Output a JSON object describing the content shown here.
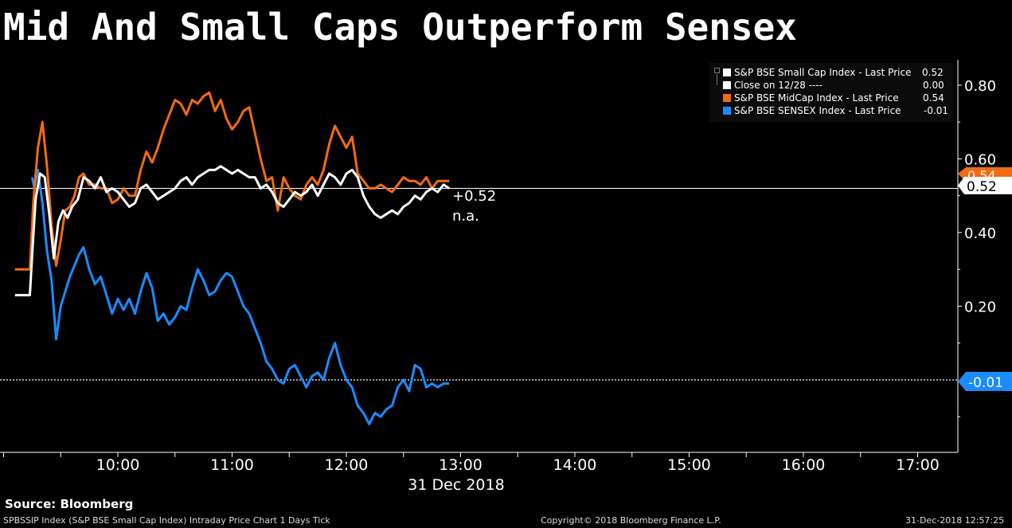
{
  "title": "Mid And Small Caps Outperform Sensex",
  "legend": {
    "items": [
      {
        "label": "S&P BSE Small Cap Index - Last Price",
        "value": "0.52",
        "color": "#ffffff"
      },
      {
        "label": "Close on 12/28 ----",
        "value": "0.00",
        "color": "#ffffff"
      },
      {
        "label": "S&P BSE MidCap Index - Last Price",
        "value": "0.54",
        "color": "#f26b12"
      },
      {
        "label": "S&P BSE SENSEX Index - Last Price",
        "value": "-0.01",
        "color": "#1a8cff"
      }
    ]
  },
  "annotations": {
    "change": "+0.52",
    "na": "n.a."
  },
  "tags": {
    "small": "0.52",
    "mid": "0.54",
    "sensex": "-0.01"
  },
  "x_date": "31 Dec 2018",
  "footer": {
    "source": "Source: Bloomberg",
    "left": "SPBSSIP Index (S&P BSE Small Cap Index) Intraday Price Chart 1 Days  Tick",
    "center": "Copyright© 2018 Bloomberg Finance L.P.",
    "right": "31-Dec-2018 12:57:25"
  },
  "chart_data": {
    "type": "line",
    "title": "Mid And Small Caps Outperform Sensex",
    "xlabel": "31 Dec 2018",
    "ylabel": "",
    "xlim": [
      9.0,
      17.5
    ],
    "ylim": [
      -0.2,
      0.9
    ],
    "x_ticks": [
      10,
      11,
      12,
      13,
      14,
      15,
      16,
      17
    ],
    "x_tick_labels": [
      "10:00",
      "11:00",
      "12:00",
      "13:00",
      "14:00",
      "15:00",
      "16:00",
      "17:00"
    ],
    "y_ticks": [
      0.2,
      0.4,
      0.6,
      0.8
    ],
    "y_tick_labels": [
      "0.20",
      "0.40",
      "0.60",
      "0.80"
    ],
    "reference_lines": [
      {
        "name": "Close on 12/28",
        "value": 0.0
      }
    ],
    "series": [
      {
        "name": "S&P BSE Small Cap Index - Last Price",
        "color": "#ffffff",
        "x": [
          9.1,
          9.23,
          9.25,
          9.28,
          9.32,
          9.36,
          9.4,
          9.44,
          9.48,
          9.52,
          9.56,
          9.6,
          9.65,
          9.7,
          9.75,
          9.8,
          9.85,
          9.9,
          9.95,
          10.0,
          10.05,
          10.1,
          10.15,
          10.2,
          10.25,
          10.3,
          10.35,
          10.4,
          10.45,
          10.5,
          10.55,
          10.6,
          10.65,
          10.7,
          10.75,
          10.8,
          10.85,
          10.9,
          10.95,
          11.0,
          11.05,
          11.1,
          11.15,
          11.2,
          11.25,
          11.3,
          11.35,
          11.4,
          11.45,
          11.5,
          11.55,
          11.6,
          11.65,
          11.7,
          11.75,
          11.8,
          11.85,
          11.9,
          11.95,
          12.0,
          12.05,
          12.1,
          12.15,
          12.2,
          12.25,
          12.3,
          12.35,
          12.4,
          12.45,
          12.5,
          12.55,
          12.6,
          12.65,
          12.7,
          12.75,
          12.8,
          12.85,
          12.9
        ],
        "values": [
          0.23,
          0.23,
          0.34,
          0.49,
          0.56,
          0.55,
          0.45,
          0.33,
          0.43,
          0.46,
          0.44,
          0.47,
          0.49,
          0.55,
          0.54,
          0.52,
          0.55,
          0.51,
          0.52,
          0.51,
          0.49,
          0.47,
          0.48,
          0.52,
          0.53,
          0.51,
          0.49,
          0.5,
          0.51,
          0.52,
          0.54,
          0.55,
          0.53,
          0.55,
          0.56,
          0.57,
          0.57,
          0.58,
          0.57,
          0.56,
          0.57,
          0.56,
          0.55,
          0.55,
          0.52,
          0.53,
          0.51,
          0.48,
          0.47,
          0.49,
          0.51,
          0.5,
          0.51,
          0.53,
          0.5,
          0.53,
          0.56,
          0.55,
          0.53,
          0.56,
          0.57,
          0.55,
          0.5,
          0.47,
          0.45,
          0.44,
          0.45,
          0.46,
          0.45,
          0.47,
          0.48,
          0.5,
          0.49,
          0.51,
          0.52,
          0.51,
          0.53,
          0.52
        ]
      },
      {
        "name": "S&P BSE MidCap Index - Last Price",
        "color": "#f26b12",
        "x": [
          9.1,
          9.23,
          9.26,
          9.3,
          9.34,
          9.38,
          9.42,
          9.46,
          9.5,
          9.54,
          9.58,
          9.62,
          9.66,
          9.7,
          9.75,
          9.8,
          9.85,
          9.9,
          9.95,
          10.0,
          10.05,
          10.1,
          10.15,
          10.2,
          10.25,
          10.3,
          10.35,
          10.4,
          10.45,
          10.5,
          10.55,
          10.6,
          10.65,
          10.7,
          10.75,
          10.8,
          10.85,
          10.9,
          10.95,
          11.0,
          11.05,
          11.1,
          11.15,
          11.2,
          11.25,
          11.3,
          11.35,
          11.4,
          11.45,
          11.5,
          11.55,
          11.6,
          11.65,
          11.7,
          11.75,
          11.8,
          11.85,
          11.9,
          11.95,
          12.0,
          12.05,
          12.1,
          12.15,
          12.2,
          12.25,
          12.3,
          12.35,
          12.4,
          12.45,
          12.5,
          12.55,
          12.6,
          12.65,
          12.7,
          12.75,
          12.8,
          12.85,
          12.9
        ],
        "values": [
          0.3,
          0.3,
          0.48,
          0.63,
          0.7,
          0.58,
          0.42,
          0.31,
          0.38,
          0.46,
          0.47,
          0.5,
          0.55,
          0.56,
          0.53,
          0.53,
          0.52,
          0.52,
          0.48,
          0.49,
          0.52,
          0.5,
          0.5,
          0.57,
          0.62,
          0.59,
          0.63,
          0.68,
          0.72,
          0.76,
          0.75,
          0.72,
          0.76,
          0.75,
          0.77,
          0.78,
          0.73,
          0.76,
          0.71,
          0.68,
          0.7,
          0.73,
          0.74,
          0.67,
          0.6,
          0.54,
          0.55,
          0.46,
          0.55,
          0.52,
          0.5,
          0.49,
          0.53,
          0.55,
          0.53,
          0.57,
          0.64,
          0.69,
          0.66,
          0.63,
          0.66,
          0.56,
          0.54,
          0.52,
          0.52,
          0.53,
          0.52,
          0.51,
          0.53,
          0.55,
          0.54,
          0.54,
          0.53,
          0.55,
          0.52,
          0.54,
          0.54,
          0.54
        ]
      },
      {
        "name": "S&P BSE SENSEX Index - Last Price",
        "color": "#1a8cff",
        "x": [
          9.25,
          9.27,
          9.3,
          9.34,
          9.38,
          9.42,
          9.46,
          9.5,
          9.54,
          9.58,
          9.62,
          9.66,
          9.7,
          9.75,
          9.8,
          9.85,
          9.9,
          9.95,
          10.0,
          10.05,
          10.1,
          10.15,
          10.2,
          10.25,
          10.3,
          10.35,
          10.4,
          10.45,
          10.5,
          10.55,
          10.6,
          10.65,
          10.7,
          10.75,
          10.8,
          10.85,
          10.9,
          10.95,
          11.0,
          11.05,
          11.1,
          11.15,
          11.2,
          11.25,
          11.3,
          11.35,
          11.4,
          11.45,
          11.5,
          11.55,
          11.6,
          11.65,
          11.7,
          11.75,
          11.8,
          11.85,
          11.9,
          11.95,
          12.0,
          12.05,
          12.1,
          12.15,
          12.2,
          12.25,
          12.3,
          12.35,
          12.4,
          12.45,
          12.5,
          12.55,
          12.6,
          12.65,
          12.7,
          12.75,
          12.8,
          12.85,
          12.9
        ],
        "values": [
          0.55,
          0.52,
          0.57,
          0.48,
          0.35,
          0.27,
          0.11,
          0.2,
          0.24,
          0.28,
          0.31,
          0.34,
          0.36,
          0.3,
          0.26,
          0.28,
          0.23,
          0.18,
          0.22,
          0.19,
          0.22,
          0.18,
          0.24,
          0.29,
          0.25,
          0.16,
          0.18,
          0.15,
          0.17,
          0.2,
          0.19,
          0.25,
          0.3,
          0.27,
          0.23,
          0.24,
          0.27,
          0.29,
          0.28,
          0.24,
          0.2,
          0.18,
          0.14,
          0.1,
          0.05,
          0.03,
          0.0,
          -0.01,
          0.03,
          0.04,
          0.01,
          -0.02,
          0.01,
          0.02,
          0.0,
          0.06,
          0.1,
          0.04,
          0.0,
          -0.02,
          -0.07,
          -0.09,
          -0.12,
          -0.09,
          -0.1,
          -0.08,
          -0.07,
          -0.02,
          0.0,
          -0.03,
          0.04,
          0.03,
          -0.02,
          -0.01,
          -0.02,
          -0.01,
          -0.01
        ]
      }
    ]
  }
}
